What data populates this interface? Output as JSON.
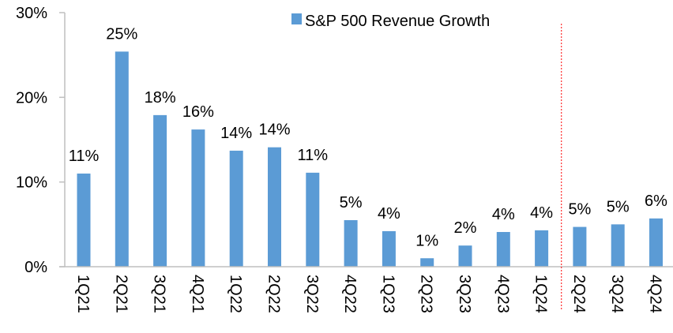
{
  "chart_data": {
    "type": "bar",
    "title": "",
    "xlabel": "",
    "ylabel": "",
    "ylim": [
      0,
      30
    ],
    "yticks": [
      0,
      10,
      20,
      30
    ],
    "ytick_labels": [
      "0%",
      "10%",
      "20%",
      "30%"
    ],
    "grid": false,
    "legend": {
      "position": "top-center",
      "entries": [
        "S&P 500 Revenue Growth"
      ]
    },
    "categories": [
      "1Q21",
      "2Q21",
      "3Q21",
      "4Q21",
      "1Q22",
      "2Q22",
      "3Q22",
      "4Q22",
      "1Q23",
      "2Q23",
      "3Q23",
      "4Q23",
      "1Q24",
      "2Q24",
      "3Q24",
      "4Q24"
    ],
    "series": [
      {
        "name": "S&P 500 Revenue Growth",
        "color": "#5B9BD5",
        "values": [
          11.0,
          25.4,
          17.9,
          16.2,
          13.7,
          14.1,
          11.1,
          5.5,
          4.2,
          1.0,
          2.5,
          4.1,
          4.3,
          4.7,
          5.0,
          5.7
        ],
        "data_labels": [
          "11%",
          "25%",
          "18%",
          "16%",
          "14%",
          "14%",
          "11%",
          "5%",
          "4%",
          "1%",
          "2%",
          "4%",
          "4%",
          "5%",
          "5%",
          "6%"
        ]
      }
    ],
    "annotations": [
      {
        "type": "vertical-dashed-line",
        "between": [
          "1Q24",
          "2Q24"
        ],
        "color": "#FF0000",
        "meaning": "actual vs estimate divider"
      }
    ],
    "axis_color": "#BFBFBF"
  }
}
